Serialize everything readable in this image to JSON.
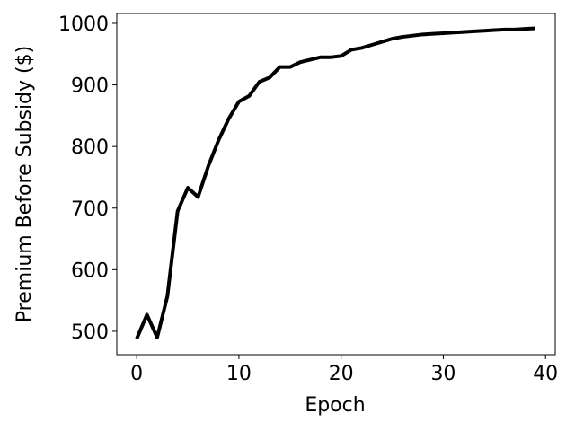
{
  "chart_data": {
    "type": "line",
    "x_label": "Epoch",
    "y_label": "Premium Before Subsidy ($)",
    "x": [
      0,
      1,
      2,
      3,
      4,
      5,
      6,
      7,
      8,
      9,
      10,
      11,
      12,
      13,
      14,
      15,
      16,
      17,
      18,
      19,
      20,
      21,
      22,
      23,
      24,
      25,
      26,
      27,
      28,
      29,
      30,
      31,
      32,
      33,
      34,
      35,
      36,
      37,
      38,
      39
    ],
    "series": [
      {
        "color": "#000000",
        "values": [
          488,
          527,
          490,
          557,
          695,
          733,
          718,
          768,
          810,
          845,
          873,
          882,
          905,
          912,
          929,
          929,
          937,
          941,
          945,
          945,
          947,
          957,
          960,
          965,
          970,
          975,
          978,
          980,
          982,
          983,
          984,
          985,
          986,
          987,
          988,
          989,
          990,
          990,
          991,
          992
        ]
      }
    ],
    "xlim": [
      -1.95,
      40.95
    ],
    "xticks": [
      0,
      10,
      20,
      30,
      40
    ],
    "ylim": [
      462,
      1016
    ],
    "yticks": [
      500,
      600,
      700,
      800,
      900,
      1000
    ]
  }
}
